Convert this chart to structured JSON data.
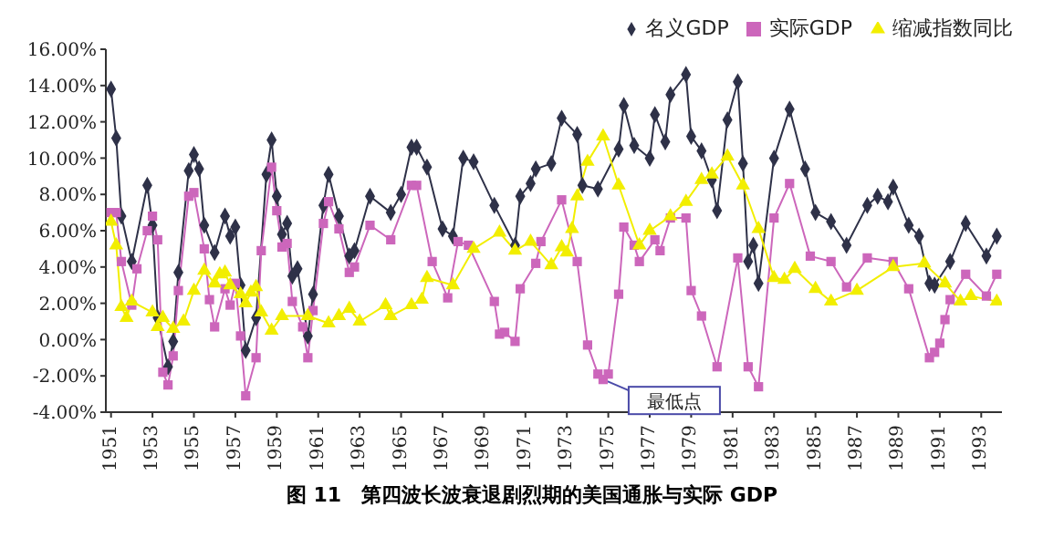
{
  "chart_data": {
    "type": "line",
    "title": "图 11　第四波长波衰退剧烈期的美国通胀与实际 GDP",
    "xlim": [
      1950.75,
      1994
    ],
    "xticks": [
      1951,
      1953,
      1955,
      1957,
      1959,
      1961,
      1963,
      1965,
      1967,
      1969,
      1971,
      1973,
      1975,
      1977,
      1979,
      1981,
      1983,
      1985,
      1987,
      1989,
      1991,
      1993
    ],
    "ylim": [
      -4,
      16
    ],
    "yticks": [
      {
        "value": -4,
        "label": "-4.00%"
      },
      {
        "value": -2,
        "label": "-2.00%"
      },
      {
        "value": 0,
        "label": "0.00%"
      },
      {
        "value": 2,
        "label": "2.00%"
      },
      {
        "value": 4,
        "label": "4.00%"
      },
      {
        "value": 6,
        "label": "6.00%"
      },
      {
        "value": 8,
        "label": "8.00%"
      },
      {
        "value": 10,
        "label": "10.00%"
      },
      {
        "value": 12,
        "label": "12.00%"
      },
      {
        "value": 14,
        "label": "14.00%"
      },
      {
        "value": 16,
        "label": "16.00%"
      }
    ],
    "grid": false,
    "legend": "top right",
    "annotations": [
      {
        "text": "最低点",
        "x": 1974.75,
        "y": -2.2
      }
    ],
    "series": [
      {
        "name": "名义GDP",
        "color": "#2e3148",
        "marker": "diamond",
        "x": [
          1951,
          1951.25,
          1951.5,
          1952,
          1952.75,
          1953,
          1953.25,
          1953.75,
          1954,
          1954.25,
          1954.75,
          1955,
          1955.25,
          1955.5,
          1956,
          1956.5,
          1956.75,
          1957,
          1957.25,
          1957.5,
          1958,
          1958.5,
          1958.75,
          1959,
          1959.25,
          1959.5,
          1959.75,
          1960,
          1960.5,
          1960.75,
          1961.25,
          1961.5,
          1962,
          1962.5,
          1962.75,
          1963.5,
          1964.5,
          1965,
          1965.5,
          1965.75,
          1966.25,
          1967,
          1967.5,
          1968,
          1968.5,
          1969.5,
          1970.5,
          1970.75,
          1971.25,
          1971.5,
          1972.25,
          1972.75,
          1973.5,
          1973.75,
          1974.5,
          1975.5,
          1975.75,
          1976.25,
          1977,
          1977.25,
          1977.75,
          1978,
          1978.75,
          1979,
          1979.5,
          1980,
          1980.25,
          1980.75,
          1981.25,
          1981.5,
          1981.75,
          1982,
          1982.25,
          1983,
          1983.75,
          1984.5,
          1985,
          1985.75,
          1986.5,
          1987.5,
          1988,
          1988.5,
          1988.75,
          1989.5,
          1990,
          1990.5,
          1990.75,
          1991.5,
          1992.25,
          1993.25,
          1993.75
        ],
        "values": [
          13.8,
          11.1,
          6.8,
          4.3,
          8.5,
          6.3,
          1.2,
          -1.5,
          -0.1,
          3.7,
          9.3,
          10.2,
          9.4,
          6.3,
          4.8,
          6.8,
          5.7,
          6.2,
          3.0,
          -0.6,
          1.2,
          9.1,
          11.0,
          7.9,
          5.8,
          6.4,
          3.5,
          3.9,
          0.2,
          2.5,
          7.4,
          9.1,
          6.8,
          4.6,
          4.9,
          7.9,
          7.0,
          8.0,
          10.6,
          10.6,
          9.5,
          6.1,
          5.7,
          10.0,
          9.8,
          7.4,
          5.2,
          7.9,
          8.6,
          9.4,
          9.7,
          12.2,
          11.3,
          8.5,
          8.3,
          10.5,
          12.9,
          10.7,
          10.0,
          12.4,
          10.9,
          13.5,
          14.6,
          11.2,
          10.4,
          8.8,
          7.1,
          12.1,
          14.2,
          9.7,
          4.3,
          5.2,
          3.1,
          10.0,
          12.7,
          9.4,
          7.0,
          6.5,
          5.2,
          7.4,
          7.9,
          7.6,
          8.4,
          6.3,
          5.7,
          3.1,
          3.0,
          4.3,
          6.4,
          4.6,
          5.7
        ]
      },
      {
        "name": "实际GDP",
        "color": "#cc66bb",
        "marker": "square",
        "x": [
          1951,
          1951.25,
          1951.5,
          1952,
          1952.25,
          1952.75,
          1953,
          1953.25,
          1953.5,
          1953.75,
          1954,
          1954.25,
          1954.75,
          1955,
          1955.5,
          1955.75,
          1956,
          1956.5,
          1956.75,
          1957,
          1957.25,
          1957.5,
          1958,
          1958.25,
          1958.75,
          1959,
          1959.25,
          1959.5,
          1959.75,
          1960.25,
          1960.5,
          1960.75,
          1961.25,
          1961.5,
          1962,
          1962.5,
          1962.75,
          1963.5,
          1964.5,
          1965.5,
          1965.75,
          1966.5,
          1967.25,
          1967.75,
          1968.25,
          1969.5,
          1969.75,
          1970,
          1970.5,
          1970.75,
          1971.5,
          1971.75,
          1972.75,
          1973.5,
          1974,
          1974.5,
          1974.75,
          1975,
          1975.5,
          1975.75,
          1976.25,
          1976.5,
          1977.25,
          1977.5,
          1978,
          1978.75,
          1979,
          1979.5,
          1980.25,
          1981.25,
          1981.75,
          1982.25,
          1983,
          1983.75,
          1984.75,
          1985.75,
          1986.5,
          1987.5,
          1988.75,
          1989.5,
          1990.5,
          1990.75,
          1991,
          1991.25,
          1991.5,
          1992.25,
          1993.25,
          1993.75
        ],
        "values": [
          7.0,
          7.0,
          4.3,
          1.9,
          3.9,
          6.0,
          6.8,
          5.5,
          -1.8,
          -2.5,
          -0.9,
          2.7,
          7.9,
          8.1,
          5.0,
          2.2,
          0.7,
          2.8,
          1.9,
          3.1,
          0.2,
          -3.1,
          -1.0,
          4.9,
          9.5,
          7.1,
          5.1,
          5.3,
          2.1,
          0.7,
          -1.0,
          1.6,
          6.4,
          7.6,
          6.1,
          3.7,
          4.0,
          6.3,
          5.5,
          8.5,
          8.5,
          4.3,
          2.3,
          5.4,
          5.2,
          2.1,
          0.3,
          0.4,
          -0.1,
          2.8,
          4.2,
          5.4,
          7.7,
          4.3,
          -0.3,
          -1.9,
          -2.2,
          -1.9,
          2.5,
          6.2,
          5.2,
          4.3,
          5.5,
          4.9,
          6.7,
          6.7,
          2.7,
          1.3,
          -1.5,
          4.5,
          -1.5,
          -2.6,
          6.7,
          8.6,
          4.6,
          4.3,
          2.9,
          4.5,
          4.3,
          2.8,
          -1.0,
          -0.7,
          -0.2,
          1.1,
          2.2,
          3.6,
          2.4,
          3.6
        ]
      },
      {
        "name": "缩减指数同比",
        "color": "#f2ee00",
        "marker": "triangle",
        "x": [
          1951,
          1951.25,
          1951.5,
          1951.75,
          1952,
          1953,
          1953.25,
          1953.5,
          1954,
          1954.5,
          1955,
          1955.5,
          1956,
          1956.25,
          1956.5,
          1956.75,
          1957.25,
          1957.5,
          1957.75,
          1958,
          1958.25,
          1958.75,
          1959.25,
          1960.5,
          1961.5,
          1962,
          1962.5,
          1963,
          1964.25,
          1964.5,
          1965.5,
          1966,
          1966.25,
          1967.5,
          1968.5,
          1969.75,
          1970.5,
          1971.25,
          1972.25,
          1972.75,
          1973,
          1973.25,
          1973.5,
          1974,
          1974.75,
          1975.5,
          1976.5,
          1977,
          1978,
          1978.75,
          1979.5,
          1980,
          1980.75,
          1981.5,
          1982.25,
          1983,
          1983.5,
          1984,
          1985,
          1985.75,
          1987,
          1988.75,
          1990.25,
          1991.25,
          1992,
          1992.5,
          1993.75
        ],
        "values": [
          6.5,
          5.2,
          1.8,
          1.2,
          2.1,
          1.5,
          0.7,
          1.2,
          0.6,
          1.0,
          2.7,
          3.8,
          3.1,
          3.6,
          3.7,
          3.0,
          2.5,
          2.0,
          2.6,
          2.9,
          1.5,
          0.5,
          1.3,
          1.3,
          0.9,
          1.3,
          1.7,
          1.0,
          1.9,
          1.3,
          1.9,
          2.2,
          3.4,
          3.0,
          5.0,
          5.9,
          4.9,
          5.4,
          4.1,
          5.1,
          4.8,
          6.1,
          7.9,
          9.8,
          11.2,
          8.5,
          5.2,
          6.0,
          6.8,
          7.6,
          8.8,
          9.1,
          10.1,
          8.5,
          6.1,
          3.4,
          3.3,
          3.9,
          2.8,
          2.1,
          2.7,
          4.0,
          4.2,
          3.1,
          2.1,
          2.4,
          2.1
        ]
      }
    ]
  }
}
